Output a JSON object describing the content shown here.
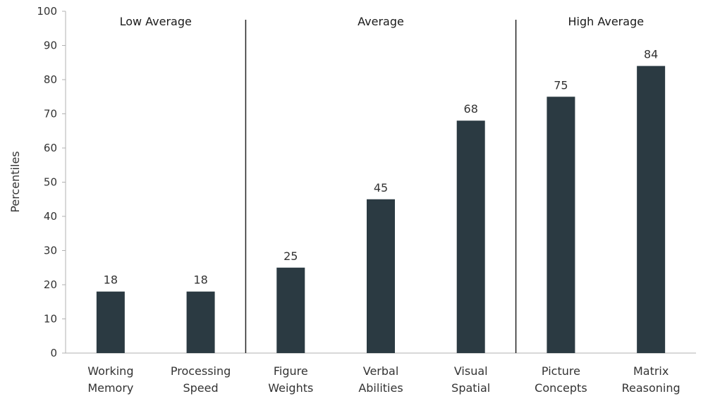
{
  "chart_data": {
    "type": "bar",
    "title": "",
    "ylabel": "Percentiles",
    "xlabel": "",
    "ylim": [
      0,
      100
    ],
    "yticks": [
      0,
      10,
      20,
      30,
      40,
      50,
      60,
      70,
      80,
      90,
      100
    ],
    "grid": false,
    "bar_color": "#2b3a42",
    "categories": [
      [
        "Working",
        "Memory"
      ],
      [
        "Processing",
        "Speed"
      ],
      [
        "Figure",
        "Weights"
      ],
      [
        "Verbal",
        "Abilities"
      ],
      [
        "Visual",
        "Spatial"
      ],
      [
        "Picture",
        "Concepts"
      ],
      [
        "Matrix",
        "Reasoning"
      ]
    ],
    "values": [
      18,
      18,
      25,
      45,
      68,
      75,
      84
    ],
    "groups": [
      {
        "label": "Low Average",
        "start": 0,
        "end": 1
      },
      {
        "label": "Average",
        "start": 2,
        "end": 4
      },
      {
        "label": "High Average",
        "start": 5,
        "end": 6
      }
    ]
  }
}
